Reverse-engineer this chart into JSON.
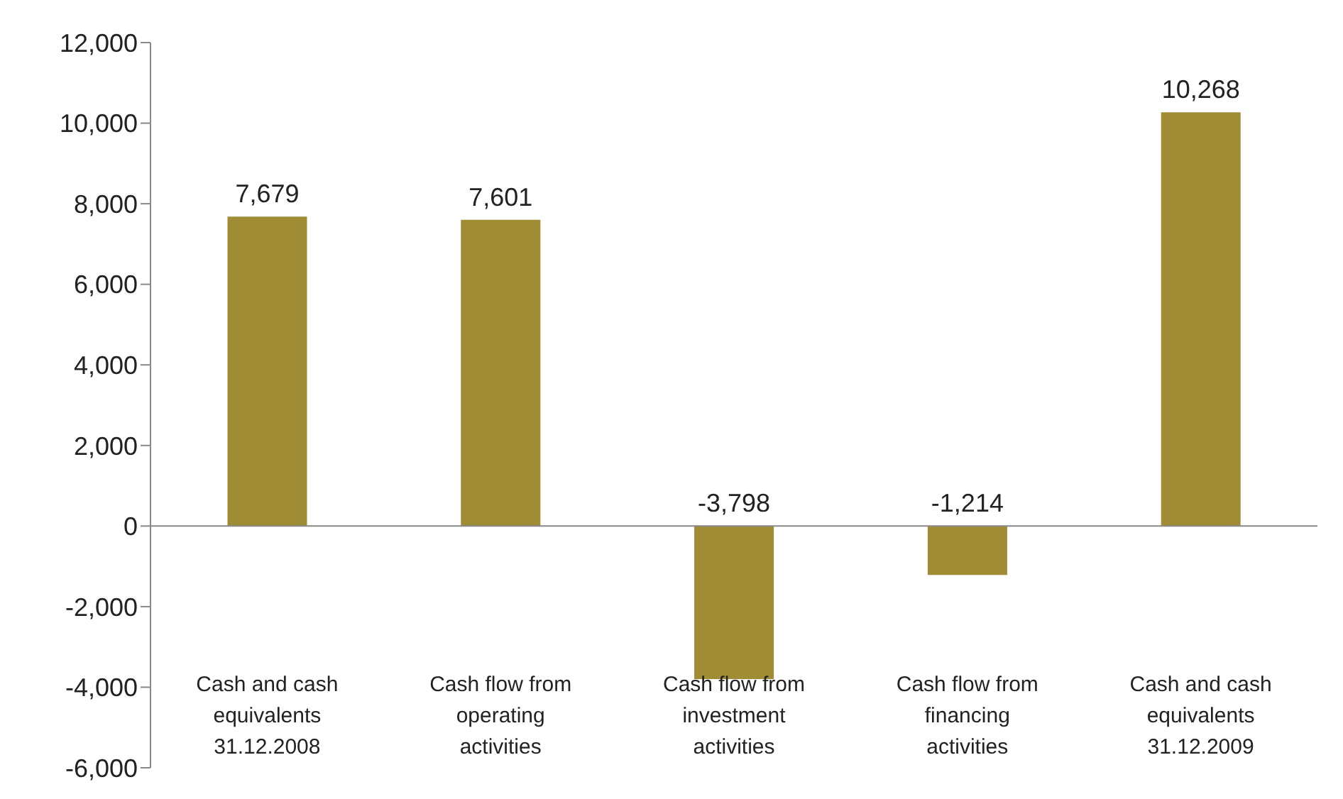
{
  "chart_data": {
    "type": "bar",
    "categories": [
      "Cash and cash equivalents 31.12.2008",
      "Cash flow from operating activities",
      "Cash flow from investment activities",
      "Cash flow from financing activities",
      "Cash and cash equivalents 31.12.2009"
    ],
    "values": [
      7679,
      7601,
      -3798,
      -1214,
      10268
    ],
    "color": "#a08c34",
    "ylim": [
      -6000,
      12000
    ],
    "yticks": [
      {
        "value": -6000,
        "label": "-6,000"
      },
      {
        "value": -4000,
        "label": "-4,000"
      },
      {
        "value": -2000,
        "label": "-2,000"
      },
      0,
      {
        "value": 2000,
        "label": "2,000"
      },
      {
        "value": 4000,
        "label": "4,000"
      },
      {
        "value": 6000,
        "label": "6,000"
      },
      {
        "value": 8000,
        "label": "8,000"
      },
      {
        "value": 10000,
        "label": "10,000"
      },
      {
        "value": 12000,
        "label": "12,000"
      }
    ],
    "value_labels": [
      "7,679",
      "7,601",
      "-3,798",
      "-1,214",
      "10,268"
    ]
  }
}
